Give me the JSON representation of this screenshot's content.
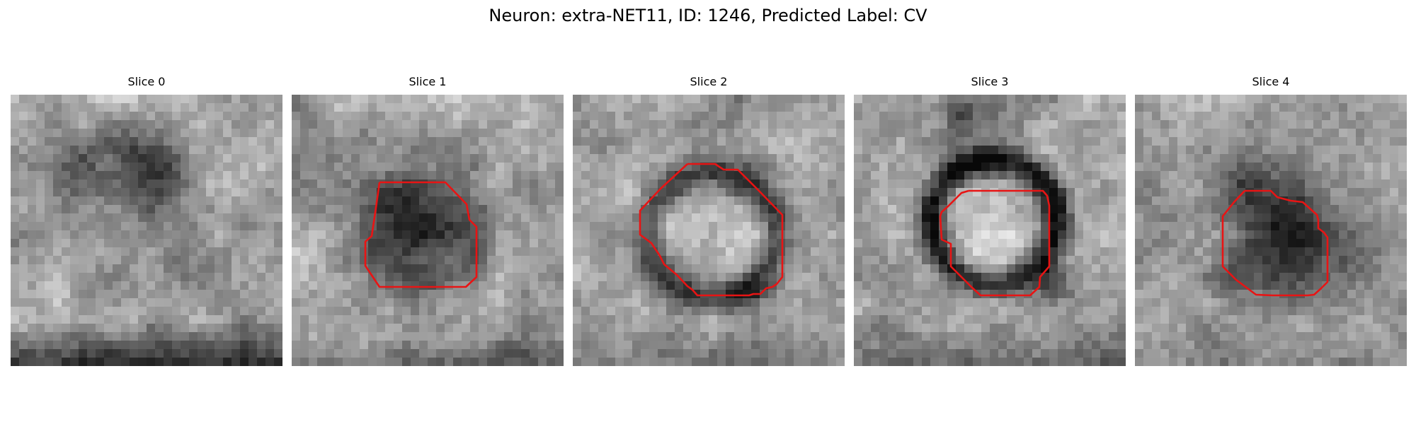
{
  "figure": {
    "title": "Neuron: extra-NET11, ID: 1246, Predicted Label: CV",
    "contour_color": "#e81414"
  },
  "slices": [
    {
      "label": "Slice 0",
      "has_contour": false
    },
    {
      "label": "Slice 1",
      "has_contour": true
    },
    {
      "label": "Slice 2",
      "has_contour": true
    },
    {
      "label": "Slice 3",
      "has_contour": true
    },
    {
      "label": "Slice 4",
      "has_contour": true
    }
  ]
}
